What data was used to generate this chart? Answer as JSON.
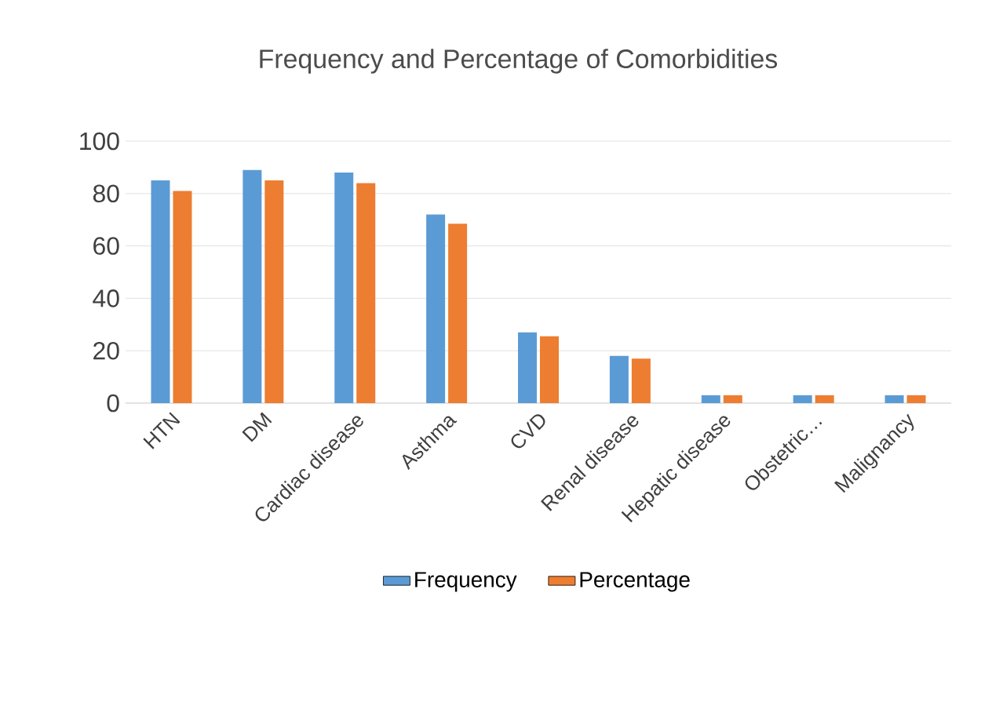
{
  "chart_data": {
    "type": "bar",
    "title": "Frequency and Percentage of Comorbidities",
    "categories": [
      "HTN",
      "DM",
      "Cardiac disease",
      "Asthma",
      "CVD",
      "Renal disease",
      "Hepatic disease",
      "Obstetric…",
      "Malignancy"
    ],
    "series": [
      {
        "name": "Frequency",
        "color": "#5b9bd5",
        "values": [
          85,
          89,
          88,
          72,
          27,
          18,
          3,
          3,
          3
        ]
      },
      {
        "name": "Percentage",
        "color": "#ed7d31",
        "values": [
          81,
          85,
          84,
          68.5,
          25.5,
          17,
          3,
          3,
          3
        ]
      }
    ],
    "ylim": [
      0,
      100
    ],
    "yticks": [
      0,
      20,
      40,
      60,
      80,
      100
    ],
    "grid": "y",
    "legend": "bottom"
  }
}
